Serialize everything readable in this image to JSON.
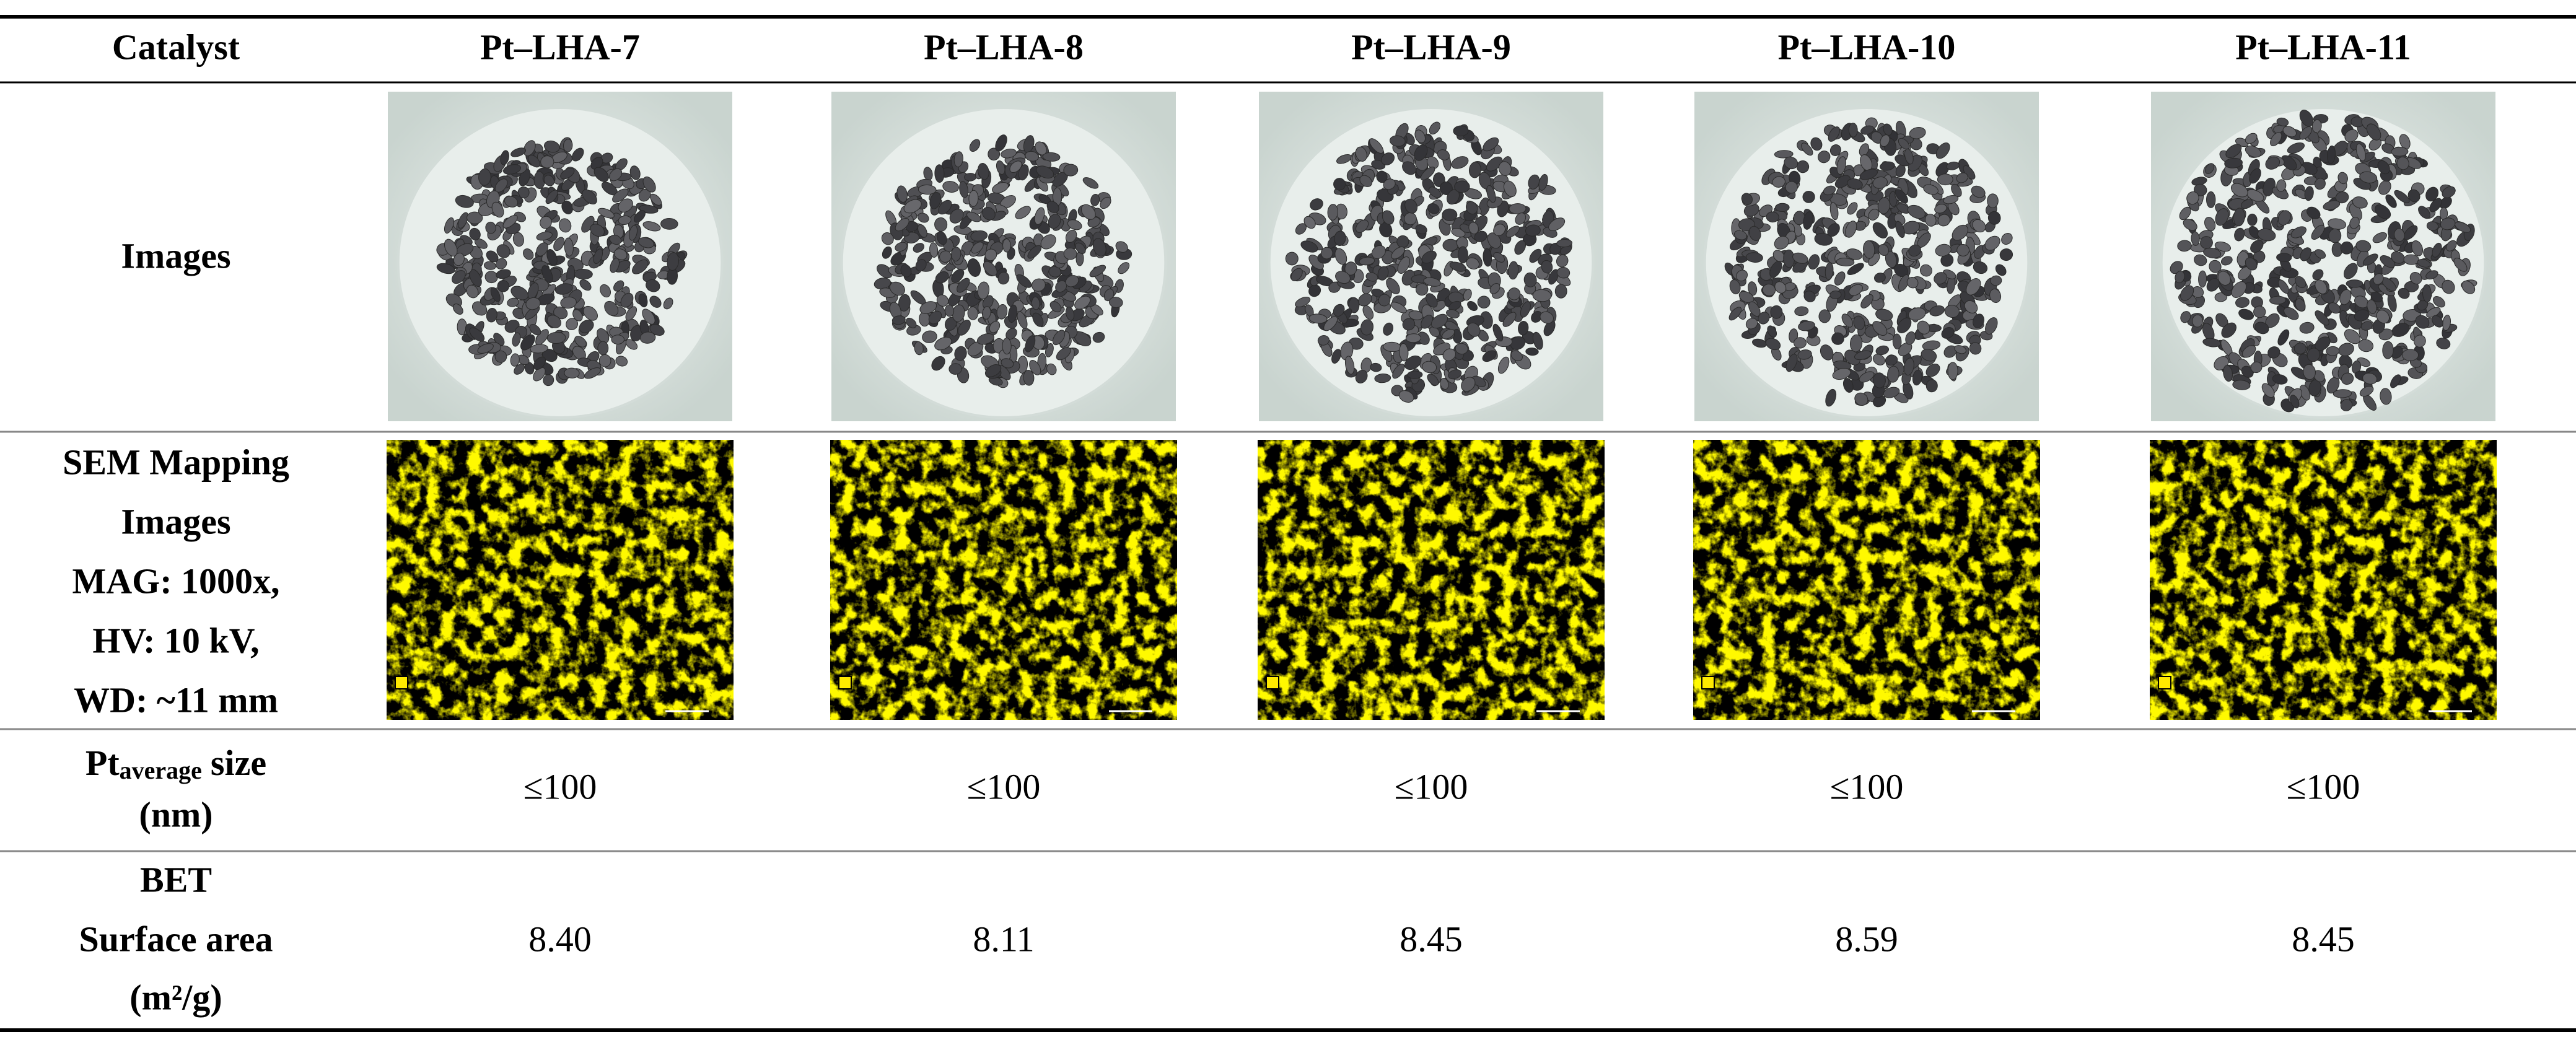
{
  "table": {
    "header": [
      "Catalyst",
      "Pt–LHA-7",
      "Pt–LHA-8",
      "Pt–LHA-9",
      "Pt–LHA-10",
      "Pt–LHA-11"
    ],
    "rows": [
      {
        "label": [
          "Images"
        ]
      },
      {
        "label": [
          "SEM Mapping",
          "Images",
          "MAG: 1000x,",
          "HV: 10 kV,",
          "WD: ~11 mm"
        ]
      },
      {
        "label": {
          "main": "Pt",
          "sub": "average",
          "rest": "size",
          "line2": "(nm)"
        },
        "values": [
          "≤100",
          "≤100",
          "≤100",
          "≤100",
          "≤100"
        ]
      },
      {
        "label": [
          "BET",
          "Surface area",
          "(m²/g)"
        ],
        "values": [
          "8.40",
          "8.11",
          "8.45",
          "8.59",
          "8.45"
        ]
      }
    ]
  }
}
